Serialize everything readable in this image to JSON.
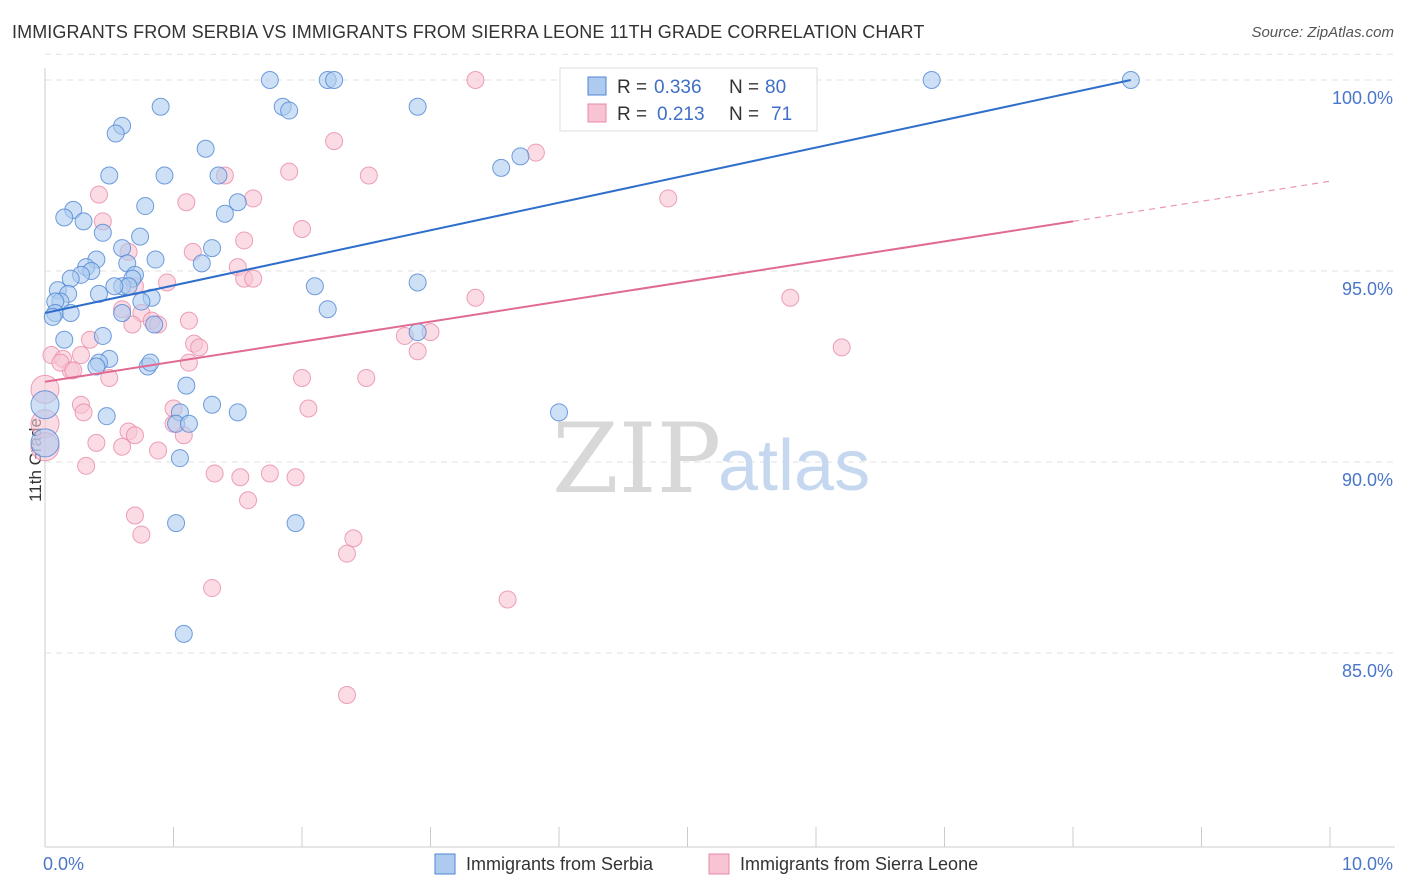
{
  "chart_data": {
    "type": "scatter",
    "title": "IMMIGRANTS FROM SERBIA VS IMMIGRANTS FROM SIERRA LEONE 11TH GRADE CORRELATION CHART",
    "source": "Source: ZipAtlas.com",
    "xlabel": "",
    "ylabel": "11th Grade",
    "xlim": [
      0,
      10
    ],
    "ylim": [
      80,
      100.7
    ],
    "x_tick_labels": [
      "0.0%",
      "10.0%"
    ],
    "y_ticks": [
      100,
      95,
      90,
      85
    ],
    "y_tick_labels": [
      "100.0%",
      "95.0%",
      "90.0%",
      "85.0%"
    ],
    "watermark": {
      "zip": "ZIP",
      "atlas": "atlas"
    },
    "stats": {
      "r_label": "R =",
      "n_label": "N ="
    },
    "colors": {
      "serbia_fill": "#aecbef",
      "serbia_stroke": "#4f86d4",
      "serbia_line": "#2f6fcb",
      "sierra_fill": "#f8c4d4",
      "sierra_stroke": "#e98aa8",
      "sierra_line": "#e06a92",
      "grid": "#e2e2e2",
      "axis": "#cccccc",
      "tick_text": "#4a76c9"
    },
    "series": [
      {
        "name": "Immigrants from Serbia",
        "r": "0.336",
        "n": "80",
        "trend": {
          "x0": 0.0,
          "y0": 93.9,
          "x1": 8.45,
          "y1": 100.0,
          "extend_to": 8.45
        },
        "points": [
          [
            1.75,
            100.0
          ],
          [
            2.2,
            100.0
          ],
          [
            2.25,
            100.0
          ],
          [
            6.9,
            100.0
          ],
          [
            8.45,
            100.0
          ],
          [
            0.9,
            99.3
          ],
          [
            1.85,
            99.3
          ],
          [
            1.9,
            99.2
          ],
          [
            2.9,
            99.3
          ],
          [
            0.6,
            98.8
          ],
          [
            0.55,
            98.6
          ],
          [
            1.25,
            98.2
          ],
          [
            3.7,
            98.0
          ],
          [
            3.55,
            97.7
          ],
          [
            0.5,
            97.5
          ],
          [
            0.93,
            97.5
          ],
          [
            1.35,
            97.5
          ],
          [
            0.78,
            96.7
          ],
          [
            1.5,
            96.8
          ],
          [
            1.4,
            96.5
          ],
          [
            0.22,
            96.6
          ],
          [
            0.15,
            96.4
          ],
          [
            0.3,
            96.3
          ],
          [
            0.45,
            96.0
          ],
          [
            0.74,
            95.9
          ],
          [
            1.3,
            95.6
          ],
          [
            0.6,
            95.6
          ],
          [
            0.4,
            95.3
          ],
          [
            0.64,
            95.2
          ],
          [
            0.86,
            95.3
          ],
          [
            1.22,
            95.2
          ],
          [
            0.32,
            95.1
          ],
          [
            0.36,
            95.0
          ],
          [
            0.28,
            94.9
          ],
          [
            0.2,
            94.8
          ],
          [
            0.7,
            94.9
          ],
          [
            0.68,
            94.8
          ],
          [
            0.6,
            94.6
          ],
          [
            0.65,
            94.6
          ],
          [
            0.54,
            94.6
          ],
          [
            2.1,
            94.6
          ],
          [
            2.9,
            94.7
          ],
          [
            0.1,
            94.5
          ],
          [
            0.18,
            94.4
          ],
          [
            0.42,
            94.4
          ],
          [
            0.12,
            94.2
          ],
          [
            0.08,
            94.2
          ],
          [
            0.83,
            94.3
          ],
          [
            0.75,
            94.2
          ],
          [
            0.6,
            93.9
          ],
          [
            0.08,
            93.9
          ],
          [
            0.2,
            93.9
          ],
          [
            0.06,
            93.8
          ],
          [
            2.2,
            94.0
          ],
          [
            0.85,
            93.6
          ],
          [
            0.45,
            93.3
          ],
          [
            0.15,
            93.2
          ],
          [
            2.9,
            93.4
          ],
          [
            0.5,
            92.7
          ],
          [
            0.42,
            92.6
          ],
          [
            0.8,
            92.5
          ],
          [
            0.82,
            92.6
          ],
          [
            0.4,
            92.5
          ],
          [
            1.1,
            92.0
          ],
          [
            0.0,
            91.5
          ],
          [
            1.3,
            91.5
          ],
          [
            1.5,
            91.3
          ],
          [
            0.48,
            91.2
          ],
          [
            1.05,
            91.3
          ],
          [
            1.02,
            91.0
          ],
          [
            1.12,
            91.0
          ],
          [
            4.0,
            91.3
          ],
          [
            1.05,
            90.1
          ],
          [
            0.0,
            90.5
          ],
          [
            1.02,
            88.4
          ],
          [
            1.95,
            88.4
          ],
          [
            1.08,
            85.5
          ]
        ]
      },
      {
        "name": "Immigrants from Sierra Leone",
        "r": "0.213",
        "n": "71",
        "trend": {
          "x0": 0.0,
          "y0": 92.1,
          "x1": 8.0,
          "y1": 96.3,
          "extend_to": 10.0
        },
        "points": [
          [
            3.35,
            100.0
          ],
          [
            2.25,
            98.4
          ],
          [
            3.82,
            98.1
          ],
          [
            1.9,
            97.6
          ],
          [
            2.52,
            97.5
          ],
          [
            1.4,
            97.5
          ],
          [
            0.42,
            97.0
          ],
          [
            1.1,
            96.8
          ],
          [
            1.62,
            96.9
          ],
          [
            4.85,
            96.9
          ],
          [
            2.0,
            96.1
          ],
          [
            0.45,
            96.3
          ],
          [
            0.65,
            95.5
          ],
          [
            1.15,
            95.5
          ],
          [
            1.55,
            95.8
          ],
          [
            1.5,
            95.1
          ],
          [
            1.55,
            94.8
          ],
          [
            1.62,
            94.8
          ],
          [
            0.95,
            94.7
          ],
          [
            0.7,
            94.6
          ],
          [
            3.35,
            94.3
          ],
          [
            5.8,
            94.3
          ],
          [
            0.6,
            94.0
          ],
          [
            0.75,
            93.9
          ],
          [
            1.12,
            93.7
          ],
          [
            0.83,
            93.7
          ],
          [
            0.88,
            93.6
          ],
          [
            0.68,
            93.6
          ],
          [
            2.8,
            93.3
          ],
          [
            3.0,
            93.4
          ],
          [
            0.35,
            93.2
          ],
          [
            6.2,
            93.0
          ],
          [
            2.9,
            92.9
          ],
          [
            1.16,
            93.1
          ],
          [
            1.2,
            93.0
          ],
          [
            0.05,
            92.8
          ],
          [
            0.14,
            92.7
          ],
          [
            0.2,
            92.4
          ],
          [
            0.28,
            92.8
          ],
          [
            0.12,
            92.6
          ],
          [
            0.22,
            92.4
          ],
          [
            0.5,
            92.2
          ],
          [
            1.12,
            92.6
          ],
          [
            2.0,
            92.2
          ],
          [
            2.5,
            92.2
          ],
          [
            0.0,
            91.9
          ],
          [
            0.28,
            91.5
          ],
          [
            0.3,
            91.3
          ],
          [
            1.0,
            91.4
          ],
          [
            2.05,
            91.4
          ],
          [
            1.0,
            91.0
          ],
          [
            0.0,
            91.0
          ],
          [
            0.65,
            90.8
          ],
          [
            0.7,
            90.7
          ],
          [
            1.08,
            90.7
          ],
          [
            0.4,
            90.5
          ],
          [
            0.6,
            90.4
          ],
          [
            0.0,
            90.4
          ],
          [
            0.88,
            90.3
          ],
          [
            1.32,
            89.7
          ],
          [
            1.52,
            89.6
          ],
          [
            1.75,
            89.7
          ],
          [
            1.95,
            89.6
          ],
          [
            0.32,
            89.9
          ],
          [
            1.58,
            89.0
          ],
          [
            0.7,
            88.6
          ],
          [
            0.75,
            88.1
          ],
          [
            2.4,
            88.0
          ],
          [
            2.35,
            87.6
          ],
          [
            1.3,
            86.7
          ],
          [
            3.6,
            86.4
          ],
          [
            2.35,
            83.9
          ]
        ]
      }
    ]
  }
}
